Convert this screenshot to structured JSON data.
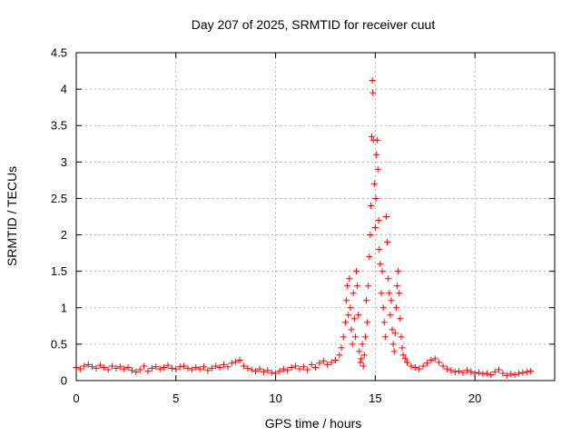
{
  "chart_data": {
    "type": "scatter",
    "title": "Day 207 of 2025, SRMTID for receiver cuut",
    "xlabel": "GPS time / hours",
    "ylabel": "SRMTID / TECUs",
    "xlim": [
      0,
      24
    ],
    "ylim": [
      0,
      4.5
    ],
    "x_ticks": [
      0,
      5,
      10,
      15,
      20
    ],
    "x_tick_labels": [
      "0",
      "5",
      "10",
      "15",
      "20"
    ],
    "y_ticks": [
      0,
      0.5,
      1,
      1.5,
      2,
      2.5,
      3,
      3.5,
      4,
      4.5
    ],
    "y_tick_labels": [
      "0",
      "0.5",
      "1",
      "1.5",
      "2",
      "2.5",
      "3",
      "3.5",
      "4",
      "4.5"
    ],
    "grid": true,
    "marker": "+",
    "color": "#ff0000",
    "series": [
      {
        "name": "SRMTID",
        "points": [
          [
            0.0,
            0.18
          ],
          [
            0.2,
            0.16
          ],
          [
            0.4,
            0.2
          ],
          [
            0.6,
            0.22
          ],
          [
            0.8,
            0.19
          ],
          [
            1.0,
            0.17
          ],
          [
            1.2,
            0.21
          ],
          [
            1.4,
            0.18
          ],
          [
            1.6,
            0.15
          ],
          [
            1.8,
            0.2
          ],
          [
            2.0,
            0.17
          ],
          [
            2.2,
            0.19
          ],
          [
            2.4,
            0.16
          ],
          [
            2.6,
            0.18
          ],
          [
            2.8,
            0.14
          ],
          [
            3.0,
            0.12
          ],
          [
            3.2,
            0.15
          ],
          [
            3.4,
            0.2
          ],
          [
            3.6,
            0.13
          ],
          [
            3.8,
            0.17
          ],
          [
            4.0,
            0.19
          ],
          [
            4.2,
            0.16
          ],
          [
            4.4,
            0.18
          ],
          [
            4.6,
            0.21
          ],
          [
            4.8,
            0.17
          ],
          [
            5.0,
            0.16
          ],
          [
            5.2,
            0.19
          ],
          [
            5.4,
            0.2
          ],
          [
            5.6,
            0.17
          ],
          [
            5.8,
            0.15
          ],
          [
            6.0,
            0.18
          ],
          [
            6.2,
            0.16
          ],
          [
            6.4,
            0.19
          ],
          [
            6.6,
            0.14
          ],
          [
            6.8,
            0.17
          ],
          [
            7.0,
            0.2
          ],
          [
            7.2,
            0.18
          ],
          [
            7.4,
            0.22
          ],
          [
            7.6,
            0.19
          ],
          [
            7.8,
            0.24
          ],
          [
            8.0,
            0.26
          ],
          [
            8.2,
            0.28
          ],
          [
            8.4,
            0.2
          ],
          [
            8.6,
            0.17
          ],
          [
            8.8,
            0.15
          ],
          [
            9.0,
            0.13
          ],
          [
            9.2,
            0.16
          ],
          [
            9.4,
            0.12
          ],
          [
            9.6,
            0.14
          ],
          [
            9.8,
            0.11
          ],
          [
            10.0,
            0.1
          ],
          [
            10.2,
            0.13
          ],
          [
            10.4,
            0.16
          ],
          [
            10.6,
            0.14
          ],
          [
            10.8,
            0.18
          ],
          [
            11.0,
            0.2
          ],
          [
            11.2,
            0.16
          ],
          [
            11.4,
            0.19
          ],
          [
            11.6,
            0.15
          ],
          [
            11.8,
            0.22
          ],
          [
            12.0,
            0.18
          ],
          [
            12.2,
            0.24
          ],
          [
            12.4,
            0.27
          ],
          [
            12.6,
            0.22
          ],
          [
            12.8,
            0.25
          ],
          [
            13.0,
            0.28
          ],
          [
            13.2,
            0.35
          ],
          [
            13.3,
            0.45
          ],
          [
            13.4,
            0.6
          ],
          [
            13.5,
            0.8
          ],
          [
            13.55,
            1.1
          ],
          [
            13.6,
            1.3
          ],
          [
            13.65,
            0.9
          ],
          [
            13.7,
            1.4
          ],
          [
            13.75,
            1.0
          ],
          [
            13.8,
            0.7
          ],
          [
            13.85,
            0.5
          ],
          [
            13.9,
            1.2
          ],
          [
            13.95,
            0.85
          ],
          [
            14.0,
            0.6
          ],
          [
            14.05,
            1.5
          ],
          [
            14.1,
            1.3
          ],
          [
            14.15,
            0.9
          ],
          [
            14.2,
            0.4
          ],
          [
            14.25,
            0.25
          ],
          [
            14.3,
            0.3
          ],
          [
            14.35,
            0.5
          ],
          [
            14.4,
            0.2
          ],
          [
            14.45,
            0.35
          ],
          [
            14.5,
            0.6
          ],
          [
            14.55,
            1.1
          ],
          [
            14.6,
            0.8
          ],
          [
            14.65,
            1.3
          ],
          [
            14.7,
            1.7
          ],
          [
            14.75,
            2.0
          ],
          [
            14.78,
            2.4
          ],
          [
            14.82,
            3.35
          ],
          [
            14.85,
            4.12
          ],
          [
            14.88,
            3.95
          ],
          [
            14.9,
            3.3
          ],
          [
            14.95,
            2.7
          ],
          [
            15.0,
            2.1
          ],
          [
            15.03,
            2.5
          ],
          [
            15.06,
            3.1
          ],
          [
            15.1,
            3.3
          ],
          [
            15.13,
            2.9
          ],
          [
            15.17,
            2.2
          ],
          [
            15.2,
            1.8
          ],
          [
            15.25,
            1.6
          ],
          [
            15.3,
            1.2
          ],
          [
            15.35,
            1.5
          ],
          [
            15.4,
            1.0
          ],
          [
            15.45,
            0.8
          ],
          [
            15.5,
            0.6
          ],
          [
            15.55,
            2.25
          ],
          [
            15.6,
            1.9
          ],
          [
            15.65,
            1.4
          ],
          [
            15.7,
            1.2
          ],
          [
            15.75,
            0.9
          ],
          [
            15.8,
            1.1
          ],
          [
            15.85,
            0.7
          ],
          [
            15.9,
            0.5
          ],
          [
            15.95,
            0.4
          ],
          [
            16.0,
            0.65
          ],
          [
            16.05,
            1.0
          ],
          [
            16.1,
            1.3
          ],
          [
            16.15,
            1.5
          ],
          [
            16.2,
            1.2
          ],
          [
            16.25,
            0.85
          ],
          [
            16.3,
            0.6
          ],
          [
            16.35,
            0.45
          ],
          [
            16.4,
            0.35
          ],
          [
            16.5,
            0.3
          ],
          [
            16.6,
            0.25
          ],
          [
            16.8,
            0.2
          ],
          [
            17.0,
            0.18
          ],
          [
            17.2,
            0.16
          ],
          [
            17.4,
            0.2
          ],
          [
            17.6,
            0.24
          ],
          [
            17.8,
            0.28
          ],
          [
            18.0,
            0.3
          ],
          [
            18.2,
            0.25
          ],
          [
            18.4,
            0.2
          ],
          [
            18.6,
            0.16
          ],
          [
            18.8,
            0.14
          ],
          [
            19.0,
            0.12
          ],
          [
            19.2,
            0.13
          ],
          [
            19.4,
            0.11
          ],
          [
            19.6,
            0.14
          ],
          [
            19.8,
            0.12
          ],
          [
            20.0,
            0.1
          ],
          [
            20.2,
            0.11
          ],
          [
            20.4,
            0.09
          ],
          [
            20.6,
            0.1
          ],
          [
            20.8,
            0.08
          ],
          [
            21.0,
            0.12
          ],
          [
            21.2,
            0.15
          ],
          [
            21.4,
            0.1
          ],
          [
            21.6,
            0.07
          ],
          [
            21.8,
            0.09
          ],
          [
            22.0,
            0.08
          ],
          [
            22.2,
            0.1
          ],
          [
            22.4,
            0.11
          ],
          [
            22.6,
            0.12
          ],
          [
            22.8,
            0.13
          ]
        ]
      }
    ]
  }
}
